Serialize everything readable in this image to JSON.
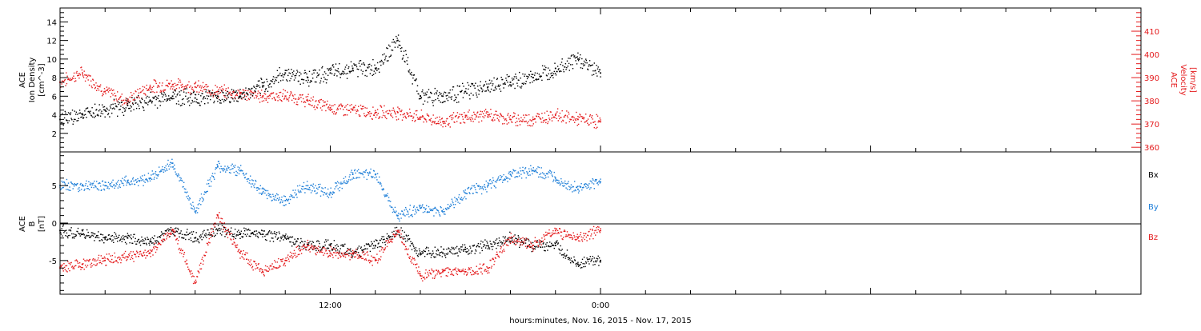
{
  "colors": {
    "black": "#000000",
    "red": "#e41a1c",
    "blue": "#1f7fd8"
  },
  "footer": {
    "xlabel": "hours:minutes, Nov. 16, 2015 - Nov. 17, 2015"
  },
  "chart_data": [
    {
      "type": "scatter",
      "panel": "top",
      "ylabel_left": [
        "ACE",
        "Ion Density",
        "[cm^-3]"
      ],
      "ylabel_right": [
        "ACE",
        "Velocity",
        "[km/s]"
      ],
      "ylim_left": [
        0,
        15.5
      ],
      "ylim_right": [
        358,
        420
      ],
      "yticks_left": [
        2,
        4,
        6,
        8,
        10,
        12,
        14
      ],
      "yticks_right": [
        360,
        370,
        380,
        390,
        400,
        410
      ],
      "x_range_hours": [
        0,
        48
      ],
      "xtick_labels": [
        {
          "hour": 12,
          "label": "12:00"
        },
        {
          "hour": 24,
          "label": "0:00"
        }
      ],
      "series": [
        {
          "name": "Ion Density",
          "axis": "left",
          "color": "#000000",
          "x": [
            0,
            1,
            2,
            3,
            4,
            5,
            6,
            7,
            8,
            9,
            10,
            11,
            12,
            13,
            14,
            15,
            16,
            17,
            18,
            19,
            20,
            21,
            22,
            23,
            24
          ],
          "y": [
            3.5,
            4,
            4.5,
            5,
            5.5,
            6,
            5.8,
            6,
            6,
            7,
            8.5,
            8,
            8.5,
            9,
            9,
            12,
            6,
            6,
            6.5,
            7,
            7.5,
            8,
            9,
            10,
            8.5
          ]
        },
        {
          "name": "Velocity",
          "axis": "right",
          "color": "#e41a1c",
          "x": [
            0,
            1,
            2,
            3,
            4,
            5,
            6,
            7,
            8,
            9,
            10,
            11,
            12,
            13,
            14,
            15,
            16,
            17,
            18,
            19,
            20,
            21,
            22,
            23,
            24
          ],
          "y": [
            388,
            392,
            384,
            380,
            386,
            387,
            386,
            384,
            383,
            382,
            382,
            380,
            377,
            376,
            375,
            375,
            373,
            371,
            373,
            374,
            372,
            372,
            374,
            372,
            371
          ]
        }
      ]
    },
    {
      "type": "scatter",
      "panel": "bottom",
      "ylabel_left": [
        "ACE",
        "B",
        "[nT]"
      ],
      "ylim": [
        -9.5,
        9.5
      ],
      "yticks": [
        -5,
        0,
        5
      ],
      "x_range_hours": [
        0,
        48
      ],
      "series": [
        {
          "name": "Bx",
          "color": "#000000",
          "x": [
            0,
            1,
            2,
            3,
            4,
            5,
            6,
            7,
            8,
            9,
            10,
            11,
            12,
            13,
            14,
            15,
            16,
            17,
            18,
            19,
            20,
            21,
            22,
            23,
            24
          ],
          "y": [
            -1,
            -1.5,
            -2,
            -2,
            -2.5,
            -1,
            -2,
            -1,
            -1.5,
            -1.5,
            -2,
            -3,
            -3,
            -4,
            -3,
            -1,
            -4,
            -4,
            -3.5,
            -3,
            -2,
            -3,
            -3,
            -5.5,
            -5
          ]
        },
        {
          "name": "By",
          "color": "#1f7fd8",
          "x": [
            0,
            1,
            2,
            3,
            4,
            5,
            6,
            7,
            8,
            9,
            10,
            11,
            12,
            13,
            14,
            15,
            16,
            17,
            18,
            19,
            20,
            21,
            22,
            23,
            24
          ],
          "y": [
            5,
            5,
            5,
            5.5,
            6,
            8,
            1.5,
            7.5,
            7,
            4,
            3,
            5,
            4,
            6.5,
            6.5,
            1,
            2,
            1.5,
            4,
            5,
            6.5,
            7,
            6,
            4.5,
            5.5
          ]
        },
        {
          "name": "Bz",
          "color": "#e41a1c",
          "x": [
            0,
            1,
            2,
            3,
            4,
            5,
            6,
            7,
            8,
            9,
            10,
            11,
            12,
            13,
            14,
            15,
            16,
            17,
            18,
            19,
            20,
            21,
            22,
            23,
            24
          ],
          "y": [
            -6,
            -5.5,
            -5,
            -4.5,
            -4,
            -1,
            -8,
            1,
            -4,
            -6.5,
            -5,
            -3,
            -4,
            -4,
            -5,
            -1,
            -7,
            -6.5,
            -6.5,
            -6,
            -2,
            -3,
            -1,
            -2,
            -1
          ]
        }
      ]
    }
  ]
}
